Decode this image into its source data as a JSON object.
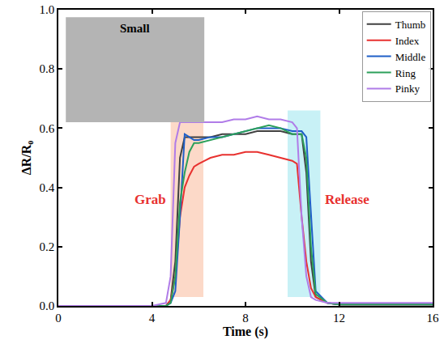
{
  "chart_data": {
    "type": "line",
    "x_label": "Time (s)",
    "y_label": "ΔR/R₀",
    "inset_label": "Small",
    "xlim": [
      0,
      16
    ],
    "xticks": [
      0,
      4,
      8,
      12,
      16
    ],
    "ylim": [
      0,
      1
    ],
    "yticks": [
      {
        "value": 0,
        "label": "0.0"
      },
      0.2,
      0.4,
      0.6,
      0.8,
      {
        "value": 1,
        "label": "1.0"
      }
    ],
    "legend": "top-right",
    "grid": false,
    "spans": [
      {
        "label": "Grab",
        "x": [
          4.8,
          6.2
        ],
        "color": "#fcd9c8"
      },
      {
        "label": "Release",
        "x": [
          9.8,
          11.2
        ],
        "color": "#c8f1f6"
      }
    ],
    "x": [
      0,
      2,
      4,
      4.6,
      4.8,
      5.0,
      5.2,
      5.4,
      5.6,
      5.8,
      6.0,
      6.5,
      7,
      7.5,
      8,
      8.5,
      9,
      9.5,
      10,
      10.2,
      10.4,
      10.6,
      10.8,
      11.0,
      11.5,
      12,
      14,
      16
    ],
    "series": [
      {
        "name": "Thumb",
        "color": "#404040",
        "values": [
          0,
          0,
          0,
          0,
          0.02,
          0.15,
          0.5,
          0.57,
          0.57,
          0.57,
          0.57,
          0.57,
          0.58,
          0.58,
          0.58,
          0.59,
          0.59,
          0.59,
          0.58,
          0.58,
          0.58,
          0.45,
          0.15,
          0.03,
          0.01,
          0.005,
          0.005,
          0.005
        ]
      },
      {
        "name": "Index",
        "color": "#e8312f",
        "values": [
          0,
          0,
          0,
          0,
          0.02,
          0.1,
          0.3,
          0.4,
          0.44,
          0.47,
          0.48,
          0.5,
          0.51,
          0.51,
          0.52,
          0.52,
          0.51,
          0.5,
          0.49,
          0.48,
          0.3,
          0.15,
          0.06,
          0.03,
          0.01,
          0.005,
          0.005,
          0.005
        ]
      },
      {
        "name": "Middle",
        "color": "#1f5fc8",
        "values": [
          0,
          0,
          0,
          0,
          0.01,
          0.05,
          0.3,
          0.58,
          0.57,
          0.56,
          0.56,
          0.57,
          0.57,
          0.58,
          0.59,
          0.6,
          0.6,
          0.6,
          0.59,
          0.59,
          0.59,
          0.57,
          0.3,
          0.05,
          0.01,
          0.005,
          0.005,
          0.005
        ]
      },
      {
        "name": "Ring",
        "color": "#2ca05a",
        "values": [
          0,
          0,
          0,
          0,
          0.01,
          0.1,
          0.35,
          0.45,
          0.52,
          0.55,
          0.55,
          0.56,
          0.57,
          0.58,
          0.59,
          0.6,
          0.61,
          0.6,
          0.58,
          0.58,
          0.58,
          0.5,
          0.2,
          0.04,
          0.01,
          0.005,
          0.005,
          0.005
        ]
      },
      {
        "name": "Pinky",
        "color": "#b07ce8",
        "values": [
          0,
          0,
          0,
          0.01,
          0.1,
          0.55,
          0.62,
          0.62,
          0.62,
          0.62,
          0.62,
          0.62,
          0.62,
          0.63,
          0.63,
          0.64,
          0.63,
          0.63,
          0.62,
          0.6,
          0.3,
          0.1,
          0.03,
          0.02,
          0.01,
          0.01,
          0.01,
          0.01
        ]
      }
    ]
  }
}
